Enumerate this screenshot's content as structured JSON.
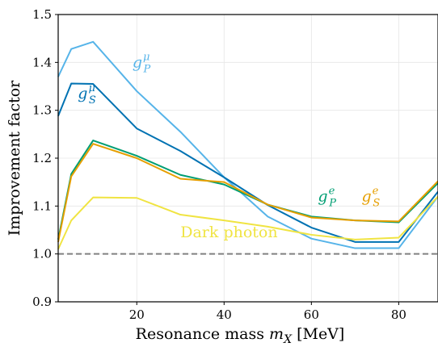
{
  "chart_data": {
    "type": "line",
    "xlabel": "Resonance mass",
    "xlabel_symbol": "m",
    "xlabel_subscript": "X",
    "xlabel_unit": "[MeV]",
    "ylabel": "Improvement factor",
    "xlim": [
      2,
      89
    ],
    "ylim": [
      0.9,
      1.5
    ],
    "x_ticks": [
      20,
      40,
      60,
      80
    ],
    "y_ticks": [
      0.9,
      1.0,
      1.1,
      1.2,
      1.3,
      1.4,
      1.5
    ],
    "grid": true,
    "reference_line": {
      "y": 1.0,
      "style": "dashed",
      "color": "#808080"
    },
    "series": [
      {
        "label_base": "g",
        "label_sup": "μ",
        "label_sub": "P",
        "color": "#56B4E9",
        "label_x": 19,
        "label_y": 1.39,
        "x": [
          2,
          5,
          10,
          20,
          30,
          40,
          50,
          60,
          70,
          80,
          89
        ],
        "y": [
          1.37,
          1.428,
          1.443,
          1.34,
          1.255,
          1.16,
          1.078,
          1.032,
          1.012,
          1.012,
          1.12
        ]
      },
      {
        "label_base": "g",
        "label_sup": "μ",
        "label_sub": "S",
        "color": "#0072B2",
        "label_x": 6.5,
        "label_y": 1.325,
        "x": [
          2,
          5,
          10,
          20,
          30,
          40,
          50,
          60,
          70,
          80,
          89
        ],
        "y": [
          1.288,
          1.356,
          1.355,
          1.262,
          1.215,
          1.16,
          1.102,
          1.055,
          1.025,
          1.025,
          1.13
        ]
      },
      {
        "label_base": "g",
        "label_sup": "e",
        "label_sub": "P",
        "color": "#009E73",
        "label_x": 61.5,
        "label_y": 1.11,
        "x": [
          2,
          5,
          10,
          20,
          30,
          40,
          50,
          60,
          70,
          80,
          89
        ],
        "y": [
          1.03,
          1.167,
          1.237,
          1.205,
          1.165,
          1.145,
          1.103,
          1.078,
          1.07,
          1.066,
          1.148
        ]
      },
      {
        "label_base": "g",
        "label_sup": "e",
        "label_sub": "S",
        "color": "#E69F00",
        "label_x": 71.5,
        "label_y": 1.11,
        "x": [
          2,
          5,
          10,
          20,
          30,
          40,
          50,
          60,
          70,
          80,
          89
        ],
        "y": [
          1.025,
          1.162,
          1.23,
          1.2,
          1.157,
          1.15,
          1.103,
          1.076,
          1.07,
          1.068,
          1.152
        ]
      },
      {
        "label_text": "Dark photon",
        "color": "#F0E442",
        "label_x": 30,
        "label_y": 1.035,
        "x": [
          2,
          5,
          10,
          20,
          30,
          40,
          50,
          60,
          70,
          80,
          89
        ],
        "y": [
          1.01,
          1.07,
          1.118,
          1.117,
          1.082,
          1.07,
          1.057,
          1.04,
          1.03,
          1.034,
          1.12
        ]
      }
    ]
  }
}
